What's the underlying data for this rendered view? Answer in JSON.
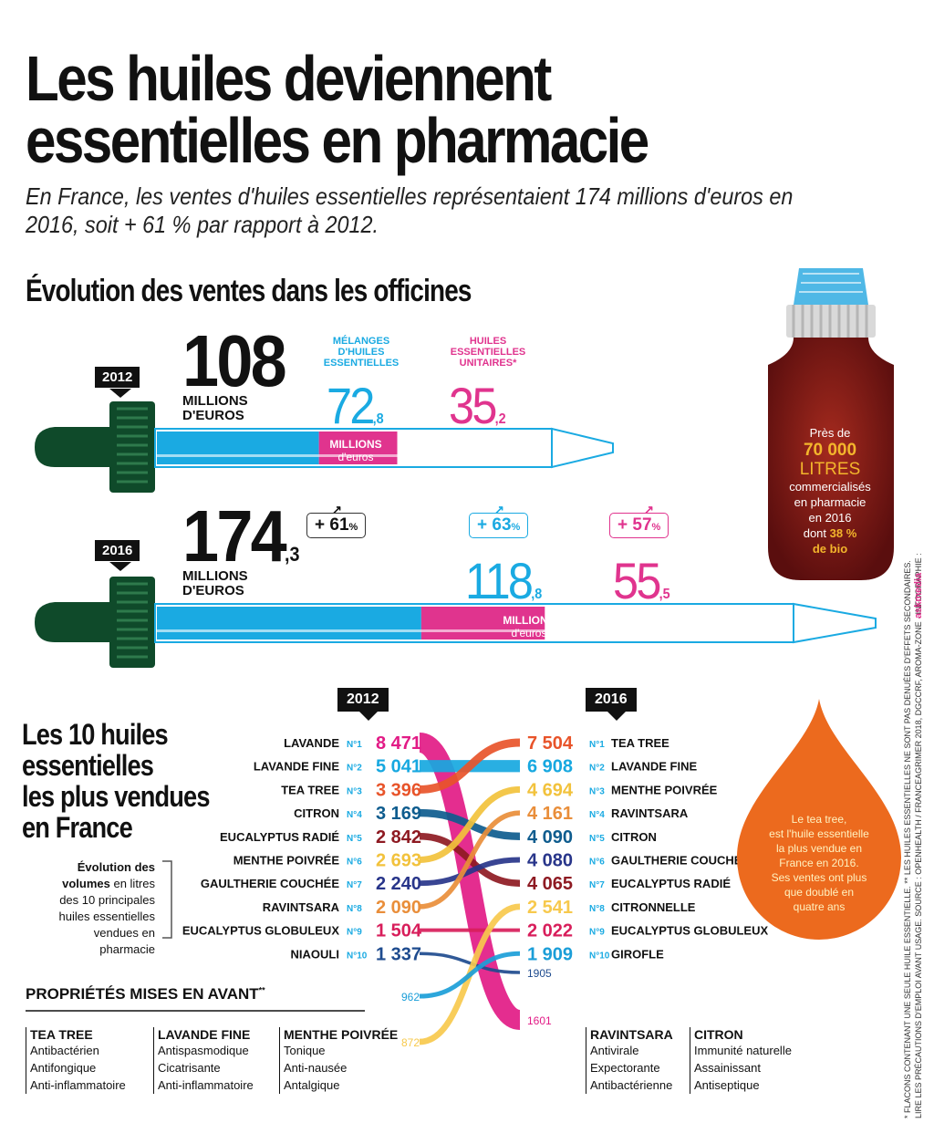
{
  "title": "Les huiles deviennent essentielles en pharmacie",
  "subtitle": "En France, les ventes d'huiles essentielles représentaient 174 millions d'euros en 2016, soit + 61 % par rapport à 2012.",
  "section1": {
    "heading": "Évolution des ventes dans les officines",
    "year_2012": "2012",
    "year_2016": "2016",
    "total_2012": "108",
    "total_2016": "174",
    "total_2016_dec": ",3",
    "millions": "MILLIONS",
    "deuros": "D'EUROS",
    "unit_bold": "MILLIONS",
    "unit_light": "d'euros",
    "cat_melanges": "MÉLANGES D'HUILES ESSENTIELLES",
    "cat_unitaires": "HUILES ESSENTIELLES UNITAIRES*",
    "melanges_2012": "72",
    "melanges_2012_dec": ",8",
    "unitaires_2012": "35",
    "unitaires_2012_dec": ",2",
    "melanges_2016": "118",
    "melanges_2016_dec": ",8",
    "unitaires_2016": "55",
    "unitaires_2016_dec": ",5",
    "growth_total": "+ 61",
    "growth_melanges": "+ 63",
    "growth_unitaires": "+ 57",
    "pct": "%",
    "arrow": "↗"
  },
  "bottle": {
    "l1": "Près de",
    "l2": "70 000",
    "l3": "LITRES",
    "l4": "commercialisés",
    "l5": "en pharmacie",
    "l6": "en 2016",
    "l7a": "dont ",
    "l7b": "38 %",
    "l8": "de bio"
  },
  "drop": {
    "l1": "Le tea tree,",
    "l2": "est l'huile essentielle",
    "l3": "la plus vendue en",
    "l4": "France en 2016.",
    "l5": "Ses ventes ont plus",
    "l6": "que doublé en",
    "l7": "quatre ans"
  },
  "section2": {
    "h1": "Les 10 huiles",
    "h2": "essentielles",
    "h3": "les plus vendues",
    "h4": "en France",
    "n1a": "Évolution des",
    "n2a": "volumes",
    "n2b": " en litres",
    "n3": "des 10 principales",
    "n4": "huiles essentielles",
    "n5": "vendues en pharmacie",
    "year_left": "2012",
    "year_right": "2016"
  },
  "colors": {
    "blue": "#1AAAE2",
    "pink": "#E0348E",
    "black": "#111111",
    "lavande": "#E21B86",
    "lavande_fine": "#17A8E0",
    "tea_tree": "#E8542A",
    "citron": "#0E5C8E",
    "eucalyptus_radie": "#8E1A22",
    "menthe": "#F2C23C",
    "gaultherie": "#28358A",
    "ravintsara": "#E98E3A",
    "eucalyptus_globuleux": "#D81E5B",
    "niaouli": "#1E4B8E",
    "citronnelle": "#F7C94D",
    "girofle": "#1B9ED8",
    "bottle": "#8B1A1A",
    "drop": "#EC6A1E"
  },
  "chart_data": [
    {
      "type": "bar",
      "title": "Évolution des ventes dans les officines",
      "ylabel": "Millions d'euros",
      "categories": [
        "2012",
        "2016"
      ],
      "series": [
        {
          "name": "Mélanges d'huiles essentielles",
          "values": [
            72.8,
            118.8
          ]
        },
        {
          "name": "Huiles essentielles unitaires",
          "values": [
            35.2,
            55.5
          ]
        }
      ],
      "totals": [
        108,
        174.3
      ],
      "growth_pct": {
        "total": 61,
        "melanges": 63,
        "unitaires": 57
      }
    },
    {
      "type": "slope",
      "title": "Les 10 huiles essentielles les plus vendues en France",
      "xlabel": "",
      "ylabel": "Volumes en litres",
      "left_year": "2012",
      "right_year": "2016",
      "left": [
        {
          "rank": "N°1",
          "name": "LAVANDE",
          "value": "8 471",
          "v": 8471,
          "color": "lavande"
        },
        {
          "rank": "N°2",
          "name": "LAVANDE FINE",
          "value": "5 041",
          "v": 5041,
          "color": "lavande_fine"
        },
        {
          "rank": "N°3",
          "name": "TEA TREE",
          "value": "3 396",
          "v": 3396,
          "color": "tea_tree"
        },
        {
          "rank": "N°4",
          "name": "CITRON",
          "value": "3 169",
          "v": 3169,
          "color": "citron"
        },
        {
          "rank": "N°5",
          "name": "EUCALYPTUS RADIÉ",
          "value": "2 842",
          "v": 2842,
          "color": "eucalyptus_radie"
        },
        {
          "rank": "N°6",
          "name": "MENTHE POIVRÉE",
          "value": "2 693",
          "v": 2693,
          "color": "menthe"
        },
        {
          "rank": "N°7",
          "name": "GAULTHERIE COUCHÉE",
          "value": "2 240",
          "v": 2240,
          "color": "gaultherie"
        },
        {
          "rank": "N°8",
          "name": "RAVINTSARA",
          "value": "2 090",
          "v": 2090,
          "color": "ravintsara"
        },
        {
          "rank": "N°9",
          "name": "EUCALYPTUS GLOBULEUX",
          "value": "1 504",
          "v": 1504,
          "color": "eucalyptus_globuleux"
        },
        {
          "rank": "N°10",
          "name": "NIAOULI",
          "value": "1 337",
          "v": 1337,
          "color": "niaouli"
        }
      ],
      "right": [
        {
          "rank": "N°1",
          "name": "TEA TREE",
          "value": "7 504",
          "v": 7504,
          "color": "tea_tree"
        },
        {
          "rank": "N°2",
          "name": "LAVANDE FINE",
          "value": "6 908",
          "v": 6908,
          "color": "lavande_fine"
        },
        {
          "rank": "N°3",
          "name": "MENTHE POIVRÉE",
          "value": "4 694",
          "v": 4694,
          "color": "menthe"
        },
        {
          "rank": "N°4",
          "name": "RAVINTSARA",
          "value": "4 161",
          "v": 4161,
          "color": "ravintsara"
        },
        {
          "rank": "N°5",
          "name": "CITRON",
          "value": "4 090",
          "v": 4090,
          "color": "citron"
        },
        {
          "rank": "N°6",
          "name": "GAULTHERIE COUCHÉE",
          "value": "4 080",
          "v": 4080,
          "color": "gaultherie"
        },
        {
          "rank": "N°7",
          "name": "EUCALYPTUS RADIÉ",
          "value": "4 065",
          "v": 4065,
          "color": "eucalyptus_radie"
        },
        {
          "rank": "N°8",
          "name": "CITRONNELLE",
          "value": "2 541",
          "v": 2541,
          "color": "citronnelle"
        },
        {
          "rank": "N°9",
          "name": "EUCALYPTUS GLOBULEUX",
          "value": "2 022",
          "v": 2022,
          "color": "eucalyptus_globuleux"
        },
        {
          "rank": "N°10",
          "name": "GIROFLE",
          "value": "1 909",
          "v": 1909,
          "color": "girofle"
        }
      ],
      "off_chart": [
        {
          "name": "LAVANDE",
          "year": "2016",
          "value": "1601"
        },
        {
          "name": "NIAOULI",
          "year": "2016",
          "value": "1905"
        },
        {
          "name": "GIROFLE",
          "year": "2012",
          "value": "962"
        },
        {
          "name": "CITRONNELLE",
          "year": "2012",
          "value": "872"
        }
      ]
    }
  ],
  "properties": {
    "heading": "PROPRIÉTÉS MISES EN AVANT",
    "heading_sup": "**",
    "groups": [
      {
        "name": "TEA TREE",
        "items": [
          "Antibactérien",
          "Antifongique",
          "Anti-inflammatoire"
        ]
      },
      {
        "name": "LAVANDE FINE",
        "items": [
          "Antispasmodique",
          "Cicatrisante",
          "Anti-inflammatoire"
        ]
      },
      {
        "name": "MENTHE POIVRÉE",
        "items": [
          "Tonique",
          "Anti-nausée",
          "Antalgique"
        ]
      },
      {
        "name": "RAVINTSARA",
        "items": [
          "Antivirale",
          "Expectorante",
          "Antibactérienne"
        ]
      },
      {
        "name": "CITRON",
        "items": [
          "Immunité naturelle",
          "Assainissant",
          "Antiseptique"
        ]
      }
    ]
  },
  "footnote1": "* FLACONS CONTENANT UNE SEULE HUILE ESSENTIELLE. ** LES HUILES ESSENTIELLES NE SONT PAS DENUÉES D'EFFETS SECONDAIRES.",
  "footnote2": "LIRE LES PRÉCAUTIONS D'EMPLOI AVANT USAGE. SOURCE : OPENHEALTH / FRANCEAGRIMER 2018, DGCCRF, AROMA-ZONE · INFOGRAPHIE :",
  "credit": "askmedia"
}
